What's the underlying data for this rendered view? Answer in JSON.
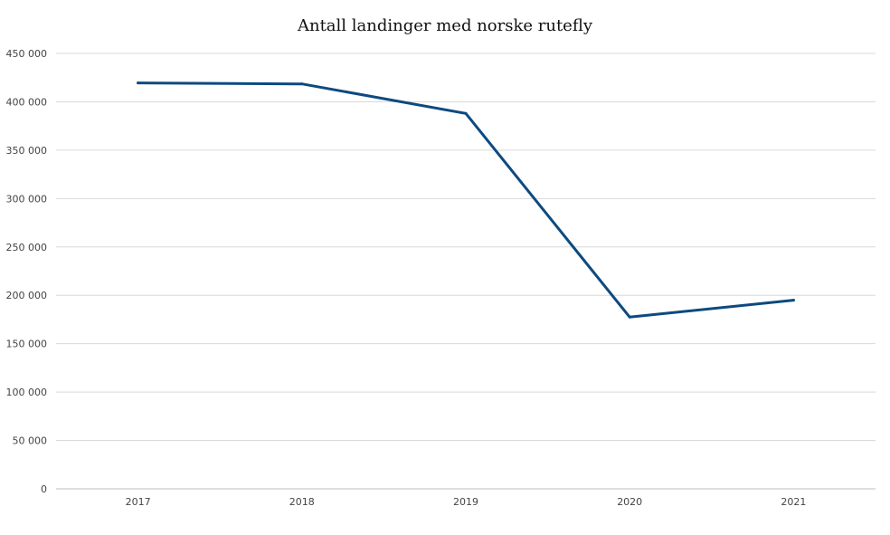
{
  "chart_data": {
    "type": "line",
    "title": "Antall landinger med norske rutefly",
    "xlabel": "",
    "ylabel": "",
    "categories": [
      "2017",
      "2018",
      "2019",
      "2020",
      "2021"
    ],
    "series": [
      {
        "values": [
          419500,
          418500,
          388000,
          177500,
          195000
        ],
        "color": "#0d4a80"
      }
    ],
    "ylim": [
      0,
      450000
    ],
    "yticks": [
      0,
      50000,
      100000,
      150000,
      200000,
      250000,
      300000,
      350000,
      400000,
      450000
    ],
    "ytick_labels": [
      "0",
      "50 000",
      "100 000",
      "150 000",
      "200 000",
      "250 000",
      "300 000",
      "350 000",
      "400 000",
      "450 000"
    ],
    "grid": true,
    "legend": "none",
    "gridline_color": "#d9d9d9"
  }
}
